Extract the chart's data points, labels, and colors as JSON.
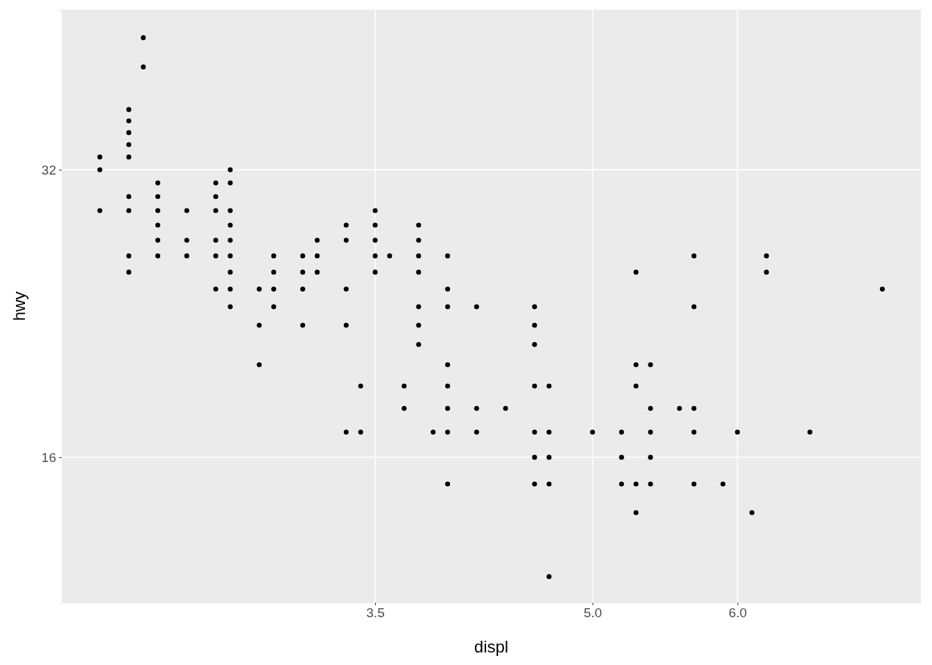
{
  "chart_data": {
    "type": "scatter",
    "xlabel": "displ",
    "ylabel": "hwy",
    "log": "y",
    "grid": true,
    "marker": "circle",
    "xlim": [
      1.337,
      7.266
    ],
    "xticks": [
      3.5,
      {
        "value": 5,
        "label": "5.0"
      },
      {
        "value": 6,
        "label": "6.0"
      }
    ],
    "ylim": [
      11.27,
      47.07
    ],
    "yticks": [
      16,
      32
    ],
    "series": [
      {
        "color": "#000000",
        "x": [
          1.6,
          1.6,
          1.6,
          1.8,
          1.8,
          1.8,
          1.8,
          1.8,
          1.8,
          1.8,
          1.8,
          1.8,
          1.9,
          1.9,
          2.0,
          2.0,
          2.0,
          2.0,
          2.0,
          2.0,
          2.2,
          2.2,
          2.2,
          2.4,
          2.4,
          2.4,
          2.4,
          2.4,
          2.4,
          2.5,
          2.5,
          2.5,
          2.5,
          2.5,
          2.5,
          2.5,
          2.5,
          2.5,
          2.7,
          2.7,
          2.7,
          2.8,
          2.8,
          2.8,
          2.8,
          3.0,
          3.0,
          3.0,
          3.0,
          3.1,
          3.1,
          3.1,
          3.3,
          3.3,
          3.3,
          3.3,
          3.3,
          3.4,
          3.4,
          3.5,
          3.5,
          3.5,
          3.5,
          3.5,
          3.6,
          3.7,
          3.7,
          3.8,
          3.8,
          3.8,
          3.8,
          3.8,
          3.8,
          3.8,
          3.9,
          4.0,
          4.0,
          4.0,
          4.0,
          4.0,
          4.0,
          4.0,
          4.0,
          4.2,
          4.2,
          4.2,
          4.4,
          4.6,
          4.6,
          4.6,
          4.6,
          4.6,
          4.6,
          4.6,
          4.7,
          4.7,
          4.7,
          4.7,
          4.7,
          5.0,
          5.2,
          5.2,
          5.2,
          5.3,
          5.3,
          5.3,
          5.3,
          5.3,
          5.4,
          5.4,
          5.4,
          5.4,
          5.4,
          5.6,
          5.7,
          5.7,
          5.7,
          5.7,
          5.7,
          5.9,
          6.0,
          6.1,
          6.2,
          6.2,
          6.5,
          7.0
        ],
        "values": [
          33,
          32,
          29,
          37,
          36,
          35,
          34,
          33,
          30,
          29,
          26,
          25,
          44,
          41,
          31,
          30,
          29,
          28,
          27,
          26,
          29,
          27,
          26,
          31,
          30,
          29,
          27,
          26,
          24,
          32,
          31,
          29,
          28,
          27,
          26,
          25,
          24,
          23,
          24,
          22,
          20,
          26,
          25,
          24,
          23,
          26,
          25,
          24,
          22,
          27,
          26,
          25,
          28,
          27,
          24,
          22,
          17,
          19,
          17,
          29,
          28,
          27,
          26,
          25,
          26,
          19,
          18,
          28,
          27,
          26,
          25,
          23,
          22,
          21,
          17,
          26,
          24,
          23,
          20,
          19,
          18,
          17,
          15,
          23,
          18,
          17,
          18,
          23,
          22,
          21,
          19,
          17,
          16,
          15,
          19,
          17,
          16,
          15,
          12,
          17,
          17,
          16,
          15,
          25,
          20,
          19,
          15,
          14,
          20,
          18,
          17,
          16,
          15,
          18,
          26,
          23,
          18,
          17,
          15,
          15,
          17,
          14,
          26,
          25,
          17,
          24
        ]
      }
    ]
  }
}
